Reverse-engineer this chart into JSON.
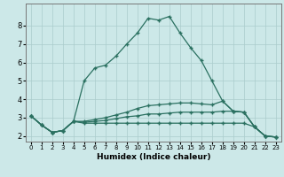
{
  "xlabel": "Humidex (Indice chaleur)",
  "background_color": "#cce8e8",
  "grid_color": "#aacccc",
  "line_color": "#2a7060",
  "xlim": [
    -0.5,
    23.5
  ],
  "ylim": [
    1.7,
    9.2
  ],
  "yticks": [
    2,
    3,
    4,
    5,
    6,
    7,
    8
  ],
  "xticks": [
    0,
    1,
    2,
    3,
    4,
    5,
    6,
    7,
    8,
    9,
    10,
    11,
    12,
    13,
    14,
    15,
    16,
    17,
    18,
    19,
    20,
    21,
    22,
    23
  ],
  "line1_x": [
    0,
    1,
    2,
    3,
    4,
    5,
    6,
    7,
    8,
    9,
    10,
    11,
    12,
    13,
    14,
    15,
    16,
    17,
    18,
    19,
    20,
    21,
    22,
    23
  ],
  "line1_y": [
    3.1,
    2.6,
    2.2,
    2.3,
    2.8,
    5.0,
    5.7,
    5.85,
    6.35,
    7.0,
    7.6,
    8.4,
    8.3,
    8.5,
    7.6,
    6.8,
    6.1,
    5.0,
    3.9,
    3.35,
    3.3,
    2.5,
    2.0,
    1.95
  ],
  "line2_x": [
    0,
    1,
    2,
    3,
    4,
    5,
    6,
    7,
    8,
    9,
    10,
    11,
    12,
    13,
    14,
    15,
    16,
    17,
    18,
    19,
    20,
    21,
    22,
    23
  ],
  "line2_y": [
    3.1,
    2.6,
    2.2,
    2.3,
    2.8,
    2.7,
    2.7,
    2.7,
    2.7,
    2.7,
    2.7,
    2.7,
    2.7,
    2.7,
    2.7,
    2.7,
    2.7,
    2.7,
    2.7,
    2.7,
    2.7,
    2.5,
    2.0,
    1.95
  ],
  "line3_x": [
    0,
    1,
    2,
    3,
    4,
    5,
    6,
    7,
    8,
    9,
    10,
    11,
    12,
    13,
    14,
    15,
    16,
    17,
    18,
    19,
    20,
    21,
    22,
    23
  ],
  "line3_y": [
    3.1,
    2.6,
    2.2,
    2.3,
    2.8,
    2.75,
    2.8,
    2.85,
    2.95,
    3.05,
    3.1,
    3.2,
    3.2,
    3.25,
    3.3,
    3.3,
    3.3,
    3.3,
    3.35,
    3.35,
    3.3,
    2.5,
    2.0,
    1.95
  ],
  "line4_x": [
    0,
    1,
    2,
    3,
    4,
    5,
    6,
    7,
    8,
    9,
    10,
    11,
    12,
    13,
    14,
    15,
    16,
    17,
    18,
    19,
    20,
    21,
    22,
    23
  ],
  "line4_y": [
    3.1,
    2.6,
    2.2,
    2.3,
    2.8,
    2.8,
    2.9,
    3.0,
    3.15,
    3.3,
    3.5,
    3.65,
    3.7,
    3.75,
    3.8,
    3.8,
    3.75,
    3.7,
    3.9,
    3.35,
    3.3,
    2.5,
    2.0,
    1.95
  ]
}
